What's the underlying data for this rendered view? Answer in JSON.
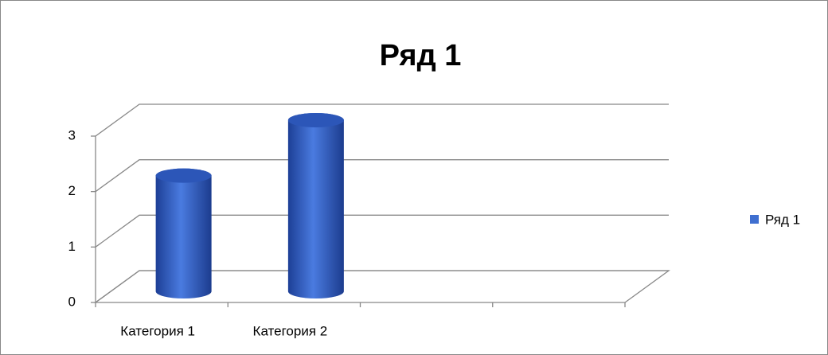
{
  "chart_data": {
    "type": "bar3d",
    "title": "Ряд 1",
    "categories": [
      "Категория 1",
      "Категория 2",
      null,
      null
    ],
    "series": [
      {
        "name": "Ряд 1",
        "color": "#3f6fd0",
        "values": [
          2,
          3,
          null,
          null
        ]
      }
    ],
    "ylim": [
      0,
      3
    ],
    "yticks": [
      0,
      1,
      2,
      3
    ],
    "grid": true,
    "legend": "right"
  }
}
